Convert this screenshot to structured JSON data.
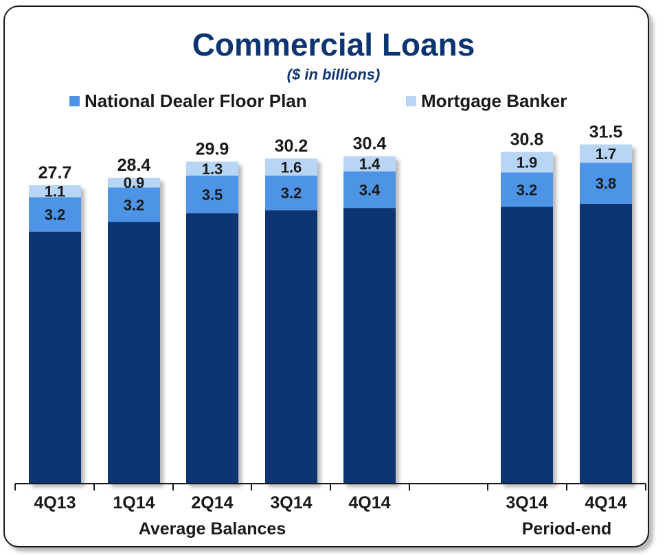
{
  "title": "Commercial Loans",
  "subtitle": "($ in billions)",
  "colors": {
    "base": "#0d3572",
    "national_dealer": "#4d94e6",
    "mortgage": "#b8d5f5"
  },
  "chart_data": {
    "type": "bar",
    "stacked": true,
    "title": "Commercial Loans",
    "subtitle": "($ in billions)",
    "categories": [
      "4Q13",
      "1Q14",
      "2Q14",
      "3Q14",
      "4Q14",
      "3Q14",
      "4Q14"
    ],
    "groups": [
      {
        "label": "Average Balances",
        "categories": [
          "4Q13",
          "1Q14",
          "2Q14",
          "3Q14",
          "4Q14"
        ]
      },
      {
        "label": "Period-end",
        "categories": [
          "3Q14",
          "4Q14"
        ]
      }
    ],
    "series": [
      {
        "values": [
          23.4,
          24.3,
          25.1,
          25.4,
          25.6,
          25.7,
          26.0
        ]
      },
      {
        "name": "National Dealer Floor Plan",
        "values": [
          3.2,
          3.2,
          3.5,
          3.2,
          3.4,
          3.2,
          3.8
        ]
      },
      {
        "name": "Mortgage Banker",
        "values": [
          1.1,
          0.9,
          1.3,
          1.6,
          1.4,
          1.9,
          1.7
        ]
      }
    ],
    "totals": [
      27.7,
      28.4,
      29.9,
      30.2,
      30.4,
      30.8,
      31.5
    ],
    "segment_labels": {
      "national_dealer": [
        "3.2",
        "3.2",
        "3.5",
        "3.2",
        "3.4",
        "3.2",
        "3.8"
      ],
      "mortgage": [
        "1.1",
        "0.9",
        "1.3",
        "1.6",
        "1.4",
        "1.9",
        "1.7"
      ]
    },
    "total_labels": [
      "27.7",
      "28.4",
      "29.9",
      "30.2",
      "30.4",
      "30.8",
      "31.5"
    ],
    "legend": {
      "placement": "top",
      "entries": [
        "National Dealer Floor Plan",
        "Mortgage Banker"
      ]
    },
    "grid": false,
    "ylim": [
      0,
      31.5
    ]
  }
}
